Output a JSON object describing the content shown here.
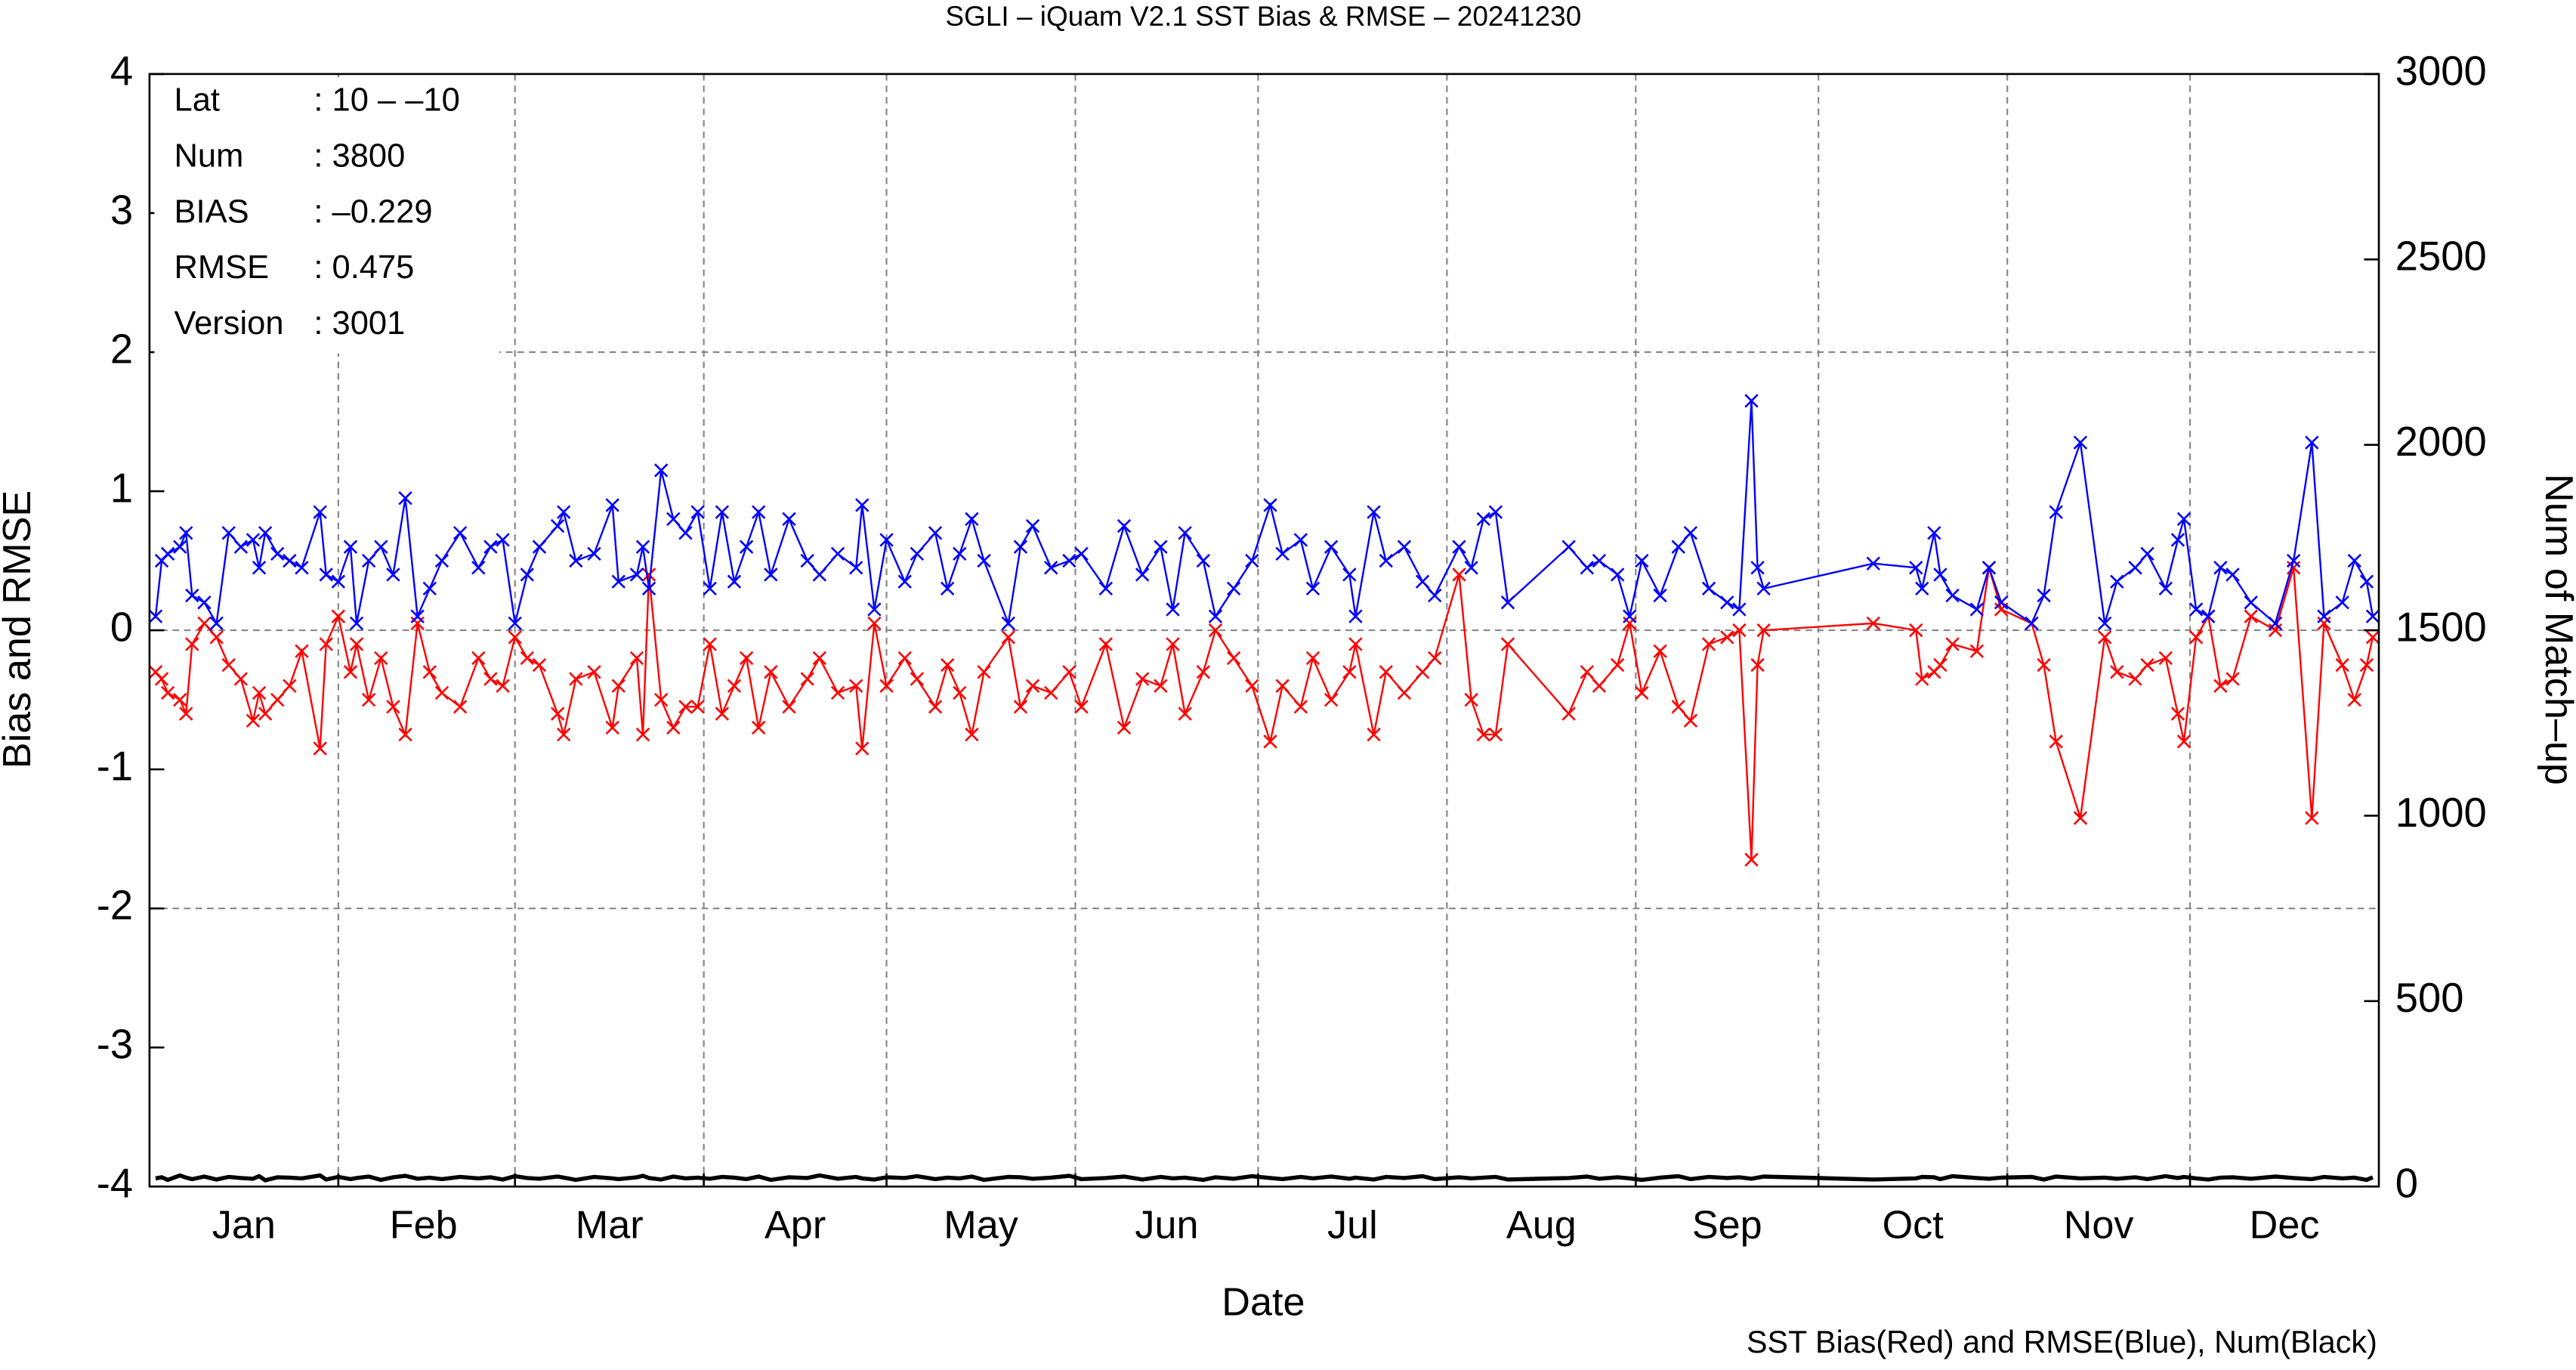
{
  "chart_data": {
    "type": "line",
    "title": "SGLI – iQuam V2.1 SST Bias & RMSE  – 20241230",
    "xlabel": "Date",
    "ylabel": "Bias and RMSE",
    "y2label": "Num of Match–up",
    "footnote": "SST Bias(Red) and RMSE(Blue), Num(Black)",
    "stats": [
      {
        "label": "Lat",
        "value": ": 10 – –10"
      },
      {
        "label": "Num",
        "value": ": 3800"
      },
      {
        "label": "BIAS",
        "value": ": –0.229"
      },
      {
        "label": "RMSE",
        "value": ": 0.475"
      },
      {
        "label": "Version",
        "value": ": 3001"
      }
    ],
    "xlim": [
      0,
      366
    ],
    "xticks": [
      {
        "value": 15.5,
        "label": "Jan"
      },
      {
        "value": 45,
        "label": "Feb"
      },
      {
        "value": 75.5,
        "label": "Mar"
      },
      {
        "value": 106,
        "label": "Apr"
      },
      {
        "value": 136.5,
        "label": "May"
      },
      {
        "value": 167,
        "label": "Jun"
      },
      {
        "value": 197.5,
        "label": "Jul"
      },
      {
        "value": 228.5,
        "label": "Aug"
      },
      {
        "value": 259,
        "label": "Sep"
      },
      {
        "value": 289.5,
        "label": "Oct"
      },
      {
        "value": 320,
        "label": "Nov"
      },
      {
        "value": 350.5,
        "label": "Dec"
      }
    ],
    "xgrid": [
      31,
      60,
      91,
      121,
      152,
      182,
      213,
      244,
      274,
      305,
      335
    ],
    "ylim": [
      -4,
      4
    ],
    "yticks": [
      -4,
      -3,
      -2,
      -1,
      0,
      1,
      2,
      3,
      4
    ],
    "ygrid": [
      -2,
      0,
      2
    ],
    "y2lim": [
      0,
      3000
    ],
    "y2ticks": [
      0,
      500,
      1000,
      1500,
      2000,
      2500,
      3000
    ],
    "marker": "x",
    "x": [
      1,
      2,
      3,
      5,
      6,
      7,
      9,
      11,
      13,
      15,
      17,
      18,
      19,
      21,
      23,
      25,
      28,
      29,
      31,
      33,
      34,
      36,
      38,
      40,
      42,
      44,
      46,
      48,
      51,
      54,
      56,
      58,
      60,
      62,
      64,
      67,
      68,
      70,
      73,
      76,
      77,
      80,
      81,
      82,
      84,
      86,
      88,
      90,
      92,
      94,
      96,
      98,
      100,
      102,
      105,
      108,
      110,
      113,
      116,
      117,
      119,
      121,
      124,
      126,
      129,
      131,
      133,
      135,
      137,
      141,
      143,
      145,
      148,
      151,
      153,
      157,
      160,
      163,
      166,
      168,
      170,
      173,
      175,
      178,
      181,
      184,
      186,
      189,
      191,
      194,
      197,
      198,
      201,
      203,
      206,
      209,
      211,
      215,
      217,
      219,
      221,
      223,
      233,
      236,
      238,
      241,
      243,
      245,
      248,
      251,
      253,
      256,
      259,
      261,
      263,
      264,
      265,
      283,
      290,
      291,
      293,
      294,
      296,
      300,
      302,
      304,
      309,
      311,
      313,
      317,
      321,
      323,
      326,
      328,
      331,
      333,
      334,
      336,
      338,
      340,
      342,
      345,
      349,
      352,
      355,
      357,
      360,
      362,
      364,
      365
    ],
    "series": [
      {
        "color": "#ff0000",
        "values": [
          -0.3,
          -0.35,
          -0.45,
          -0.5,
          -0.6,
          -0.1,
          0.05,
          -0.05,
          -0.25,
          -0.35,
          -0.65,
          -0.45,
          -0.6,
          -0.5,
          -0.4,
          -0.15,
          -0.85,
          -0.1,
          0.1,
          -0.3,
          -0.1,
          -0.5,
          -0.2,
          -0.55,
          -0.75,
          0.05,
          -0.3,
          -0.45,
          -0.55,
          -0.2,
          -0.35,
          -0.4,
          -0.05,
          -0.2,
          -0.25,
          -0.6,
          -0.75,
          -0.35,
          -0.3,
          -0.7,
          -0.4,
          -0.2,
          -0.75,
          0.4,
          -0.5,
          -0.7,
          -0.55,
          -0.55,
          -0.1,
          -0.6,
          -0.4,
          -0.2,
          -0.7,
          -0.3,
          -0.55,
          -0.35,
          -0.2,
          -0.45,
          -0.4,
          -0.85,
          0.05,
          -0.4,
          -0.2,
          -0.35,
          -0.55,
          -0.25,
          -0.45,
          -0.75,
          -0.3,
          -0.05,
          -0.55,
          -0.4,
          -0.45,
          -0.3,
          -0.55,
          -0.1,
          -0.7,
          -0.35,
          -0.4,
          -0.1,
          -0.6,
          -0.3,
          0.0,
          -0.2,
          -0.4,
          -0.8,
          -0.4,
          -0.55,
          -0.2,
          -0.5,
          -0.3,
          -0.1,
          -0.75,
          -0.3,
          -0.45,
          -0.3,
          -0.2,
          0.4,
          -0.5,
          -0.75,
          -0.75,
          -0.1,
          -0.6,
          -0.3,
          -0.4,
          -0.25,
          0.05,
          -0.45,
          -0.15,
          -0.55,
          -0.65,
          -0.1,
          -0.05,
          0.0,
          -1.65,
          -0.25,
          0.0,
          0.05,
          0.0,
          -0.35,
          -0.3,
          -0.25,
          -0.1,
          -0.15,
          0.45,
          0.15,
          0.05,
          -0.25,
          -0.8,
          -1.35,
          -0.05,
          -0.3,
          -0.35,
          -0.25,
          -0.2,
          -0.6,
          -0.8,
          -0.05,
          0.1,
          -0.4,
          -0.35,
          0.1,
          0.0,
          0.45,
          -1.35,
          0.05,
          -0.25,
          -0.5,
          -0.25,
          -0.05
        ]
      },
      {
        "color": "#0000ff",
        "values": [
          0.1,
          0.5,
          0.55,
          0.6,
          0.7,
          0.25,
          0.2,
          0.05,
          0.7,
          0.6,
          0.65,
          0.45,
          0.7,
          0.55,
          0.5,
          0.45,
          0.85,
          0.4,
          0.35,
          0.6,
          0.05,
          0.5,
          0.6,
          0.4,
          0.95,
          0.1,
          0.3,
          0.5,
          0.7,
          0.45,
          0.6,
          0.65,
          0.05,
          0.4,
          0.6,
          0.75,
          0.85,
          0.5,
          0.55,
          0.9,
          0.35,
          0.4,
          0.6,
          0.3,
          1.15,
          0.8,
          0.7,
          0.85,
          0.3,
          0.85,
          0.35,
          0.6,
          0.85,
          0.4,
          0.8,
          0.5,
          0.4,
          0.55,
          0.45,
          0.9,
          0.15,
          0.65,
          0.35,
          0.55,
          0.7,
          0.3,
          0.55,
          0.8,
          0.5,
          0.05,
          0.6,
          0.75,
          0.45,
          0.5,
          0.55,
          0.3,
          0.75,
          0.4,
          0.6,
          0.15,
          0.7,
          0.5,
          0.1,
          0.3,
          0.5,
          0.9,
          0.55,
          0.65,
          0.3,
          0.6,
          0.4,
          0.1,
          0.85,
          0.5,
          0.6,
          0.35,
          0.25,
          0.6,
          0.45,
          0.8,
          0.85,
          0.2,
          0.6,
          0.45,
          0.5,
          0.4,
          0.1,
          0.5,
          0.25,
          0.6,
          0.7,
          0.3,
          0.2,
          0.15,
          1.65,
          0.45,
          0.3,
          0.48,
          0.45,
          0.3,
          0.7,
          0.4,
          0.25,
          0.15,
          0.45,
          0.2,
          0.05,
          0.25,
          0.85,
          1.35,
          0.05,
          0.35,
          0.45,
          0.55,
          0.3,
          0.65,
          0.8,
          0.15,
          0.1,
          0.45,
          0.4,
          0.2,
          0.05,
          0.5,
          1.35,
          0.1,
          0.2,
          0.5,
          0.35,
          0.1
        ]
      },
      {
        "color": "#000000",
        "axis": "y2",
        "values": [
          22,
          25,
          18,
          30,
          24,
          20,
          27,
          19,
          26,
          23,
          21,
          28,
          17,
          25,
          24,
          22,
          30,
          19,
          26,
          20,
          23,
          27,
          18,
          25,
          29,
          21,
          24,
          20,
          26,
          22,
          25,
          19,
          28,
          23,
          21,
          27,
          24,
          18,
          26,
          22,
          20,
          25,
          29,
          23,
          19,
          27,
          22,
          24,
          21,
          26,
          24,
          20,
          27,
          18,
          25,
          23,
          30,
          21,
          26,
          22,
          19,
          25,
          23,
          28,
          20,
          24,
          22,
          27,
          18,
          26,
          25,
          21,
          24,
          29,
          20,
          23,
          27,
          19,
          26,
          22,
          24,
          18,
          25,
          21,
          28,
          23,
          20,
          26,
          22,
          27,
          21,
          24,
          19,
          26,
          23,
          28,
          20,
          25,
          22,
          24,
          26,
          19,
          23,
          27,
          21,
          25,
          22,
          18,
          24,
          28,
          20,
          26,
          23,
          25,
          21,
          24,
          27,
          19,
          22,
          26,
          25,
          20,
          28,
          23,
          21,
          24,
          26,
          19,
          27,
          22,
          24,
          21,
          25,
          20,
          28,
          23,
          26,
          22,
          19,
          24,
          25,
          21,
          27,
          23,
          20,
          26,
          22,
          24,
          18,
          25
        ]
      }
    ]
  }
}
